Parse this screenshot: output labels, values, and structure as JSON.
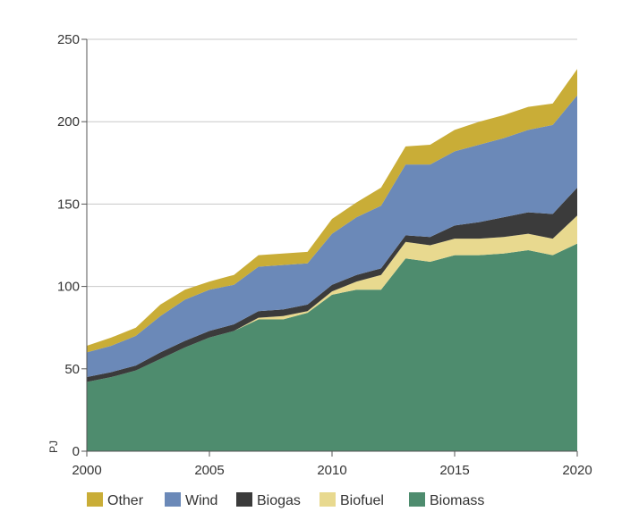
{
  "chart_data": {
    "type": "area",
    "stacked": true,
    "title": "",
    "xlabel": "",
    "ylabel": "PJ",
    "xlim": [
      2000,
      2020
    ],
    "ylim": [
      0,
      250
    ],
    "x_ticks": [
      2000,
      2005,
      2010,
      2015,
      2020
    ],
    "y_ticks": [
      0,
      50,
      100,
      150,
      200,
      250
    ],
    "grid": "horizontal",
    "legend_position": "bottom",
    "x": [
      2000,
      2001,
      2002,
      2003,
      2004,
      2005,
      2006,
      2007,
      2008,
      2009,
      2010,
      2011,
      2012,
      2013,
      2014,
      2015,
      2016,
      2017,
      2018,
      2019,
      2020
    ],
    "series": [
      {
        "name": "Biomass",
        "color": "#4e8c6e",
        "values": [
          42,
          45,
          49,
          56,
          63,
          69,
          73,
          80,
          80,
          84,
          95,
          98,
          98,
          117,
          115,
          119,
          119,
          120,
          122,
          119,
          126
        ]
      },
      {
        "name": "Biofuel",
        "color": "#e8d98f",
        "values": [
          0,
          0,
          0,
          0,
          0,
          0,
          0,
          1,
          2,
          1,
          2,
          5,
          9,
          10,
          10,
          10,
          10,
          10,
          10,
          10,
          17
        ]
      },
      {
        "name": "Biogas",
        "color": "#3b3b3b",
        "values": [
          3,
          3,
          3,
          4,
          4,
          4,
          4,
          4,
          4,
          4,
          4,
          4,
          4,
          4,
          5,
          8,
          10,
          12,
          13,
          15,
          17
        ]
      },
      {
        "name": "Wind",
        "color": "#6b89b8",
        "values": [
          15,
          16,
          18,
          22,
          25,
          25,
          24,
          27,
          27,
          25,
          31,
          35,
          38,
          43,
          44,
          45,
          47,
          48,
          50,
          54,
          56
        ]
      },
      {
        "name": "Other",
        "color": "#c9ad37",
        "values": [
          4,
          5,
          5,
          7,
          6,
          5,
          6,
          7,
          7,
          7,
          9,
          9,
          11,
          11,
          12,
          13,
          14,
          14,
          14,
          13,
          16
        ]
      }
    ],
    "legend_order": [
      "Other",
      "Wind",
      "Biogas",
      "Biofuel",
      "Biomass"
    ]
  }
}
